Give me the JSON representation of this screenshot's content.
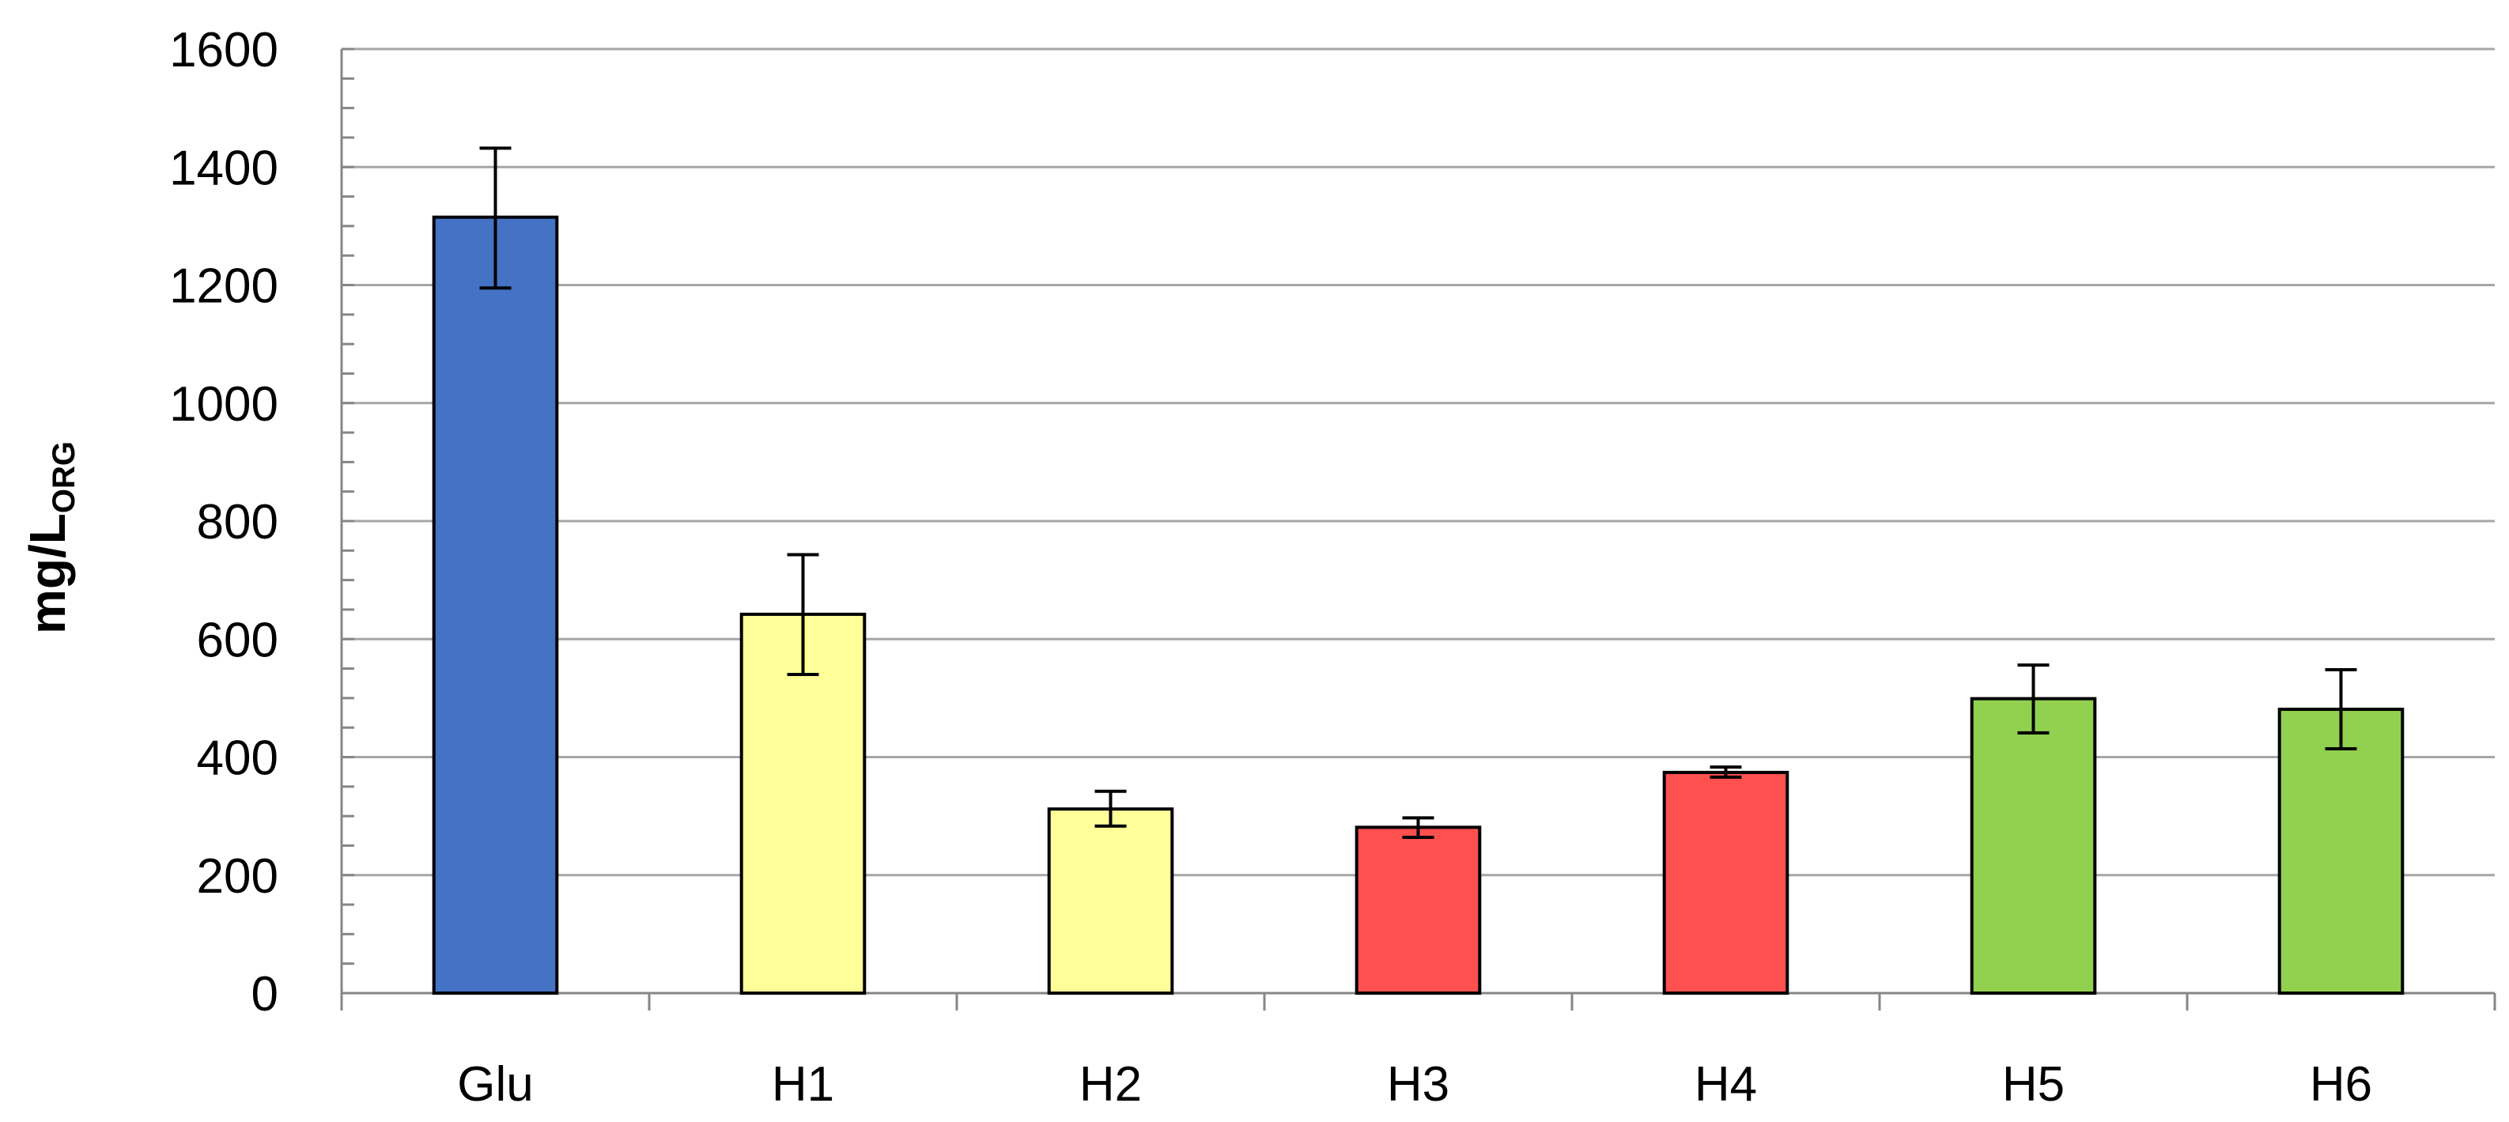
{
  "chart_data": {
    "type": "bar",
    "categories": [
      "Glu",
      "H1",
      "H2",
      "H3",
      "H4",
      "H5",
      "H6"
    ],
    "values": [
      1315,
      642,
      312,
      281,
      374,
      499,
      481
    ],
    "error_bars": [
      {
        "low": 1195,
        "high": 1432
      },
      {
        "low": 540,
        "high": 743
      },
      {
        "low": 283,
        "high": 342
      },
      {
        "low": 264,
        "high": 297
      },
      {
        "low": 366,
        "high": 383
      },
      {
        "low": 441,
        "high": 556
      },
      {
        "low": 414,
        "high": 548
      }
    ],
    "bar_colors": [
      "#4472C4",
      "#FFFF99",
      "#FFFF99",
      "#FF5050",
      "#FF5050",
      "#92D050",
      "#92D050"
    ],
    "title": "",
    "xlabel": "",
    "ylabel": "mg/L",
    "ylabel_subscript": "ORG",
    "ylim": [
      0,
      1600
    ],
    "y_ticks": [
      0,
      200,
      400,
      600,
      800,
      1000,
      1200,
      1400,
      1600
    ],
    "y_minor_step": 50,
    "grid": true,
    "gridline_color": "#A6A6A6",
    "axis_color": "#868686"
  }
}
